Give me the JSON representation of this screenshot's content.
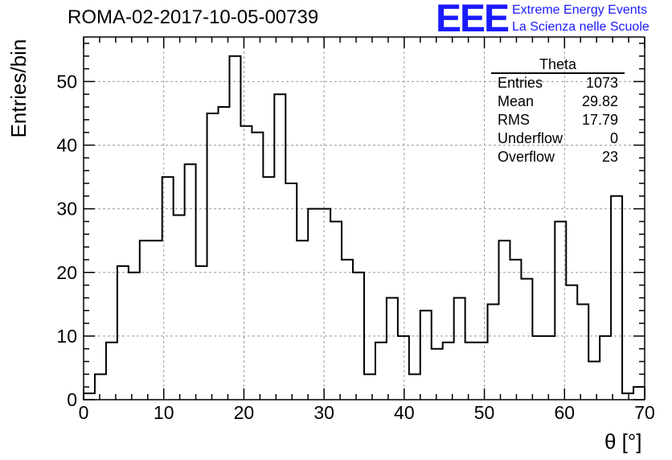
{
  "header": {
    "title": "ROMA-02-2017-10-05-00739"
  },
  "logo": {
    "mark": "EEE",
    "line1": "Extreme Energy Events",
    "line2": "La Scienza nelle Scuole",
    "color": "#1a1aff"
  },
  "stats": {
    "title": "Theta",
    "rows": [
      {
        "label": "Entries",
        "value": "1073"
      },
      {
        "label": "Mean",
        "value": "29.82"
      },
      {
        "label": "RMS",
        "value": "17.79"
      },
      {
        "label": "Underflow",
        "value": "0"
      },
      {
        "label": "Overflow",
        "value": "23"
      }
    ]
  },
  "chart_data": {
    "type": "histogram",
    "xlabel": "θ [°]",
    "ylabel": "Entries/bin",
    "xlim": [
      0,
      70
    ],
    "ylim": [
      0,
      57
    ],
    "grid": true,
    "bin_width": 1.4,
    "bin_edges_start": 0,
    "values": [
      1,
      4,
      9,
      21,
      20,
      25,
      25,
      35,
      29,
      37,
      21,
      45,
      46,
      54,
      43,
      42,
      35,
      48,
      34,
      25,
      30,
      30,
      28,
      22,
      20,
      4,
      9,
      16,
      10,
      4,
      14,
      8,
      9,
      16,
      9,
      9,
      15,
      25,
      22,
      19,
      10,
      10,
      28,
      18,
      15,
      6,
      10,
      32,
      1,
      2
    ],
    "xticks": [
      0,
      10,
      20,
      30,
      40,
      50,
      60,
      70
    ],
    "yticks": [
      0,
      10,
      20,
      30,
      40,
      50
    ],
    "line_color": "#000000",
    "grid_color": "#9a9a9a"
  }
}
